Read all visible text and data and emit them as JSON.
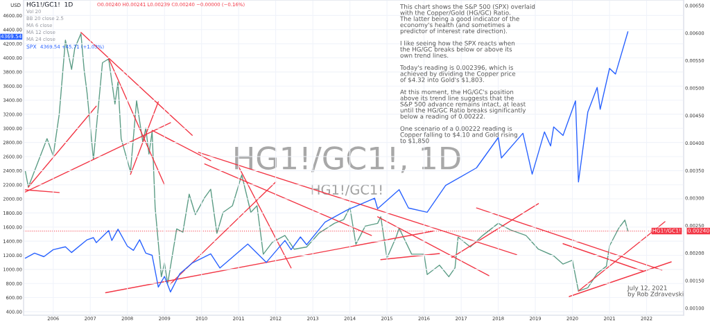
{
  "chart_data": {
    "type": "line",
    "title": "HG1!/GC1!  1D",
    "ylabel": "USD",
    "annotations": [
      "O0.00240 H0.00241 L0.00239 C0.00240 −0.00000 (−0.16%)",
      "Vol 20",
      "BB 20 close 2.5",
      "MA 6 close",
      "MA 12 close",
      "MA 24 close",
      "4369.54 +45.71 (+1.03%)",
      "This chart shows the S&P 500 (SPX) overlaid\nwith the Copper/Gold (HG/GC) Ratio.\nThe latter being a good indicator of the\neconomy's health (and sometimes a\npredictor of interest rate direction).\n\nI like seeing how the SPX reacts when\nthe HG/GC breaks below or above its\nown trend lines.\n\nToday's reading is 0.002396, which is\nachieved by dividing the Copper price\nof $4.32 into Gold's $1,803.\n\nAt this moment, the HG/GC's position\nabove its trend line suggests that the\nS&P 500 advance remains intact, at least\nuntil the HG/GC Ratio breaks significantly\nbelow a reading of 0.00222.\n\nOne scenario of a 0.00222 reading is\nCopper falling to $4.10 and Gold rising\nto $1,850",
      "July 12, 2021\nby Rob Zdravevski",
      "HG1!/GC1!, 1D",
      "HG1!/GC1!",
      "4369.54",
      "0.00240"
    ],
    "xlim": [
      "2005-03-15",
      "2023-01"
    ],
    "xticks": [
      "2006",
      "2007",
      "2008",
      "2009",
      "2010",
      "2011",
      "2012",
      "2013",
      "2014",
      "2015",
      "2016",
      "2017",
      "2018",
      "2019",
      "2020",
      "2021",
      "2022"
    ],
    "ylim": [
      350,
      4820
    ],
    "yticks": [
      {
        "value": 400,
        "label": "400.00"
      },
      {
        "value": 600,
        "label": "600.00"
      },
      {
        "value": 800,
        "label": "800.00"
      },
      {
        "value": 1000,
        "label": "1000.00"
      },
      {
        "value": 1200,
        "label": "1200.00"
      },
      {
        "value": 1400,
        "label": "1400.00"
      },
      {
        "value": 1600,
        "label": "1600.00"
      },
      {
        "value": 1800,
        "label": "1800.00"
      },
      {
        "value": 2000,
        "label": "2000.00"
      },
      {
        "value": 2200,
        "label": "2200.00"
      },
      {
        "value": 2400,
        "label": "2400.00"
      },
      {
        "value": 2600,
        "label": "2600.00"
      },
      {
        "value": 2800,
        "label": "2800.00"
      },
      {
        "value": 3000,
        "label": "3000.00"
      },
      {
        "value": 3200,
        "label": "3200.00"
      },
      {
        "value": 3400,
        "label": "3400.00"
      },
      {
        "value": 3600,
        "label": "3600.00"
      },
      {
        "value": 3800,
        "label": "3800.00"
      },
      {
        "value": 4000,
        "label": "4000.00"
      },
      {
        "value": 4200,
        "label": "4200.00"
      },
      {
        "value": 4400,
        "label": "4400.00"
      },
      {
        "value": 4600,
        "label": "4600.00"
      }
    ],
    "y2lim": [
      0.00087,
      0.0066
    ],
    "y2ticks": [
      {
        "value": 0.001,
        "label": "0.00100"
      },
      {
        "value": 0.0015,
        "label": "0.00150"
      },
      {
        "value": 0.002,
        "label": "0.00200"
      },
      {
        "value": 0.0025,
        "label": "0.00250"
      },
      {
        "value": 0.003,
        "label": "0.00300"
      },
      {
        "value": 0.0035,
        "label": "0.00350"
      },
      {
        "value": 0.004,
        "label": "0.00400"
      },
      {
        "value": 0.0045,
        "label": "0.00450"
      },
      {
        "value": 0.005,
        "label": "0.00500"
      },
      {
        "value": 0.0055,
        "label": "0.00550"
      },
      {
        "value": 0.006,
        "label": "0.00600"
      },
      {
        "value": 0.0065,
        "label": "0.00650"
      }
    ],
    "grid": true,
    "ref_lines": [
      {
        "axis": "y2",
        "value": 0.0024,
        "label": "HG1!/GC1!",
        "color": "#f23645",
        "line_style": "dotted"
      }
    ],
    "series": [
      {
        "name": "SPX",
        "axis": "y",
        "color": "#2962ff",
        "x": [
          "2005-04",
          "2005-07",
          "2005-10",
          "2006-01",
          "2006-05",
          "2006-07",
          "2006-12",
          "2007-02",
          "2007-03",
          "2007-07",
          "2007-08",
          "2007-10",
          "2008-01",
          "2008-03",
          "2008-05",
          "2008-07",
          "2008-09",
          "2008-11",
          "2009-01",
          "2009-03",
          "2009-06",
          "2009-10",
          "2010-04",
          "2010-07",
          "2011-04",
          "2011-10",
          "2012-04",
          "2012-06",
          "2012-09",
          "2012-11",
          "2013-05",
          "2013-12",
          "2014-09",
          "2014-10",
          "2015-05",
          "2015-08",
          "2016-02",
          "2016-08",
          "2017-06",
          "2018-01",
          "2018-02",
          "2018-09",
          "2018-12",
          "2019-04",
          "2019-06",
          "2019-07",
          "2019-10",
          "2020-02",
          "2020-03",
          "2020-06",
          "2020-09",
          "2020-10",
          "2021-01",
          "2021-03",
          "2021-07"
        ],
        "values": [
          1160,
          1230,
          1180,
          1280,
          1320,
          1240,
          1420,
          1450,
          1380,
          1550,
          1410,
          1570,
          1330,
          1270,
          1420,
          1230,
          1200,
          750,
          900,
          680,
          940,
          1090,
          1220,
          1020,
          1360,
          1100,
          1410,
          1280,
          1460,
          1350,
          1670,
          1840,
          2010,
          1860,
          2130,
          1870,
          1810,
          2190,
          2440,
          2870,
          2580,
          2930,
          2350,
          2950,
          2750,
          3020,
          2900,
          3390,
          2240,
          3230,
          3580,
          3270,
          3850,
          3770,
          4370
        ]
      },
      {
        "axis": "y2",
        "color": "#5b9c85",
        "x": [
          "2005-04",
          "2005-05",
          "2005-11",
          "2006-01",
          "2006-03",
          "2006-05",
          "2006-07",
          "2006-08",
          "2006-10",
          "2006-11",
          "2006-12",
          "2007-02",
          "2007-05",
          "2007-07",
          "2007-09",
          "2007-10",
          "2007-11",
          "2008-02",
          "2008-04",
          "2008-06",
          "2008-07",
          "2008-08",
          "2008-09",
          "2008-10",
          "2008-12",
          "2009-01",
          "2009-02",
          "2009-05",
          "2009-07",
          "2009-09",
          "2009-11",
          "2010-02",
          "2010-04",
          "2010-06",
          "2010-08",
          "2010-11",
          "2011-02",
          "2011-05",
          "2011-07",
          "2011-09",
          "2011-12",
          "2012-04",
          "2012-07",
          "2012-11",
          "2013-03",
          "2013-08",
          "2013-11",
          "2014-01",
          "2014-03",
          "2014-06",
          "2014-10",
          "2014-11",
          "2015-01",
          "2015-04",
          "2015-05",
          "2015-09",
          "2016-01",
          "2016-02",
          "2016-06",
          "2016-09",
          "2016-11",
          "2016-12",
          "2017-04",
          "2017-08",
          "2018-01",
          "2018-05",
          "2018-10",
          "2019-02",
          "2019-07",
          "2019-10",
          "2020-01",
          "2020-03",
          "2020-06",
          "2020-09",
          "2020-12",
          "2021-01",
          "2021-04",
          "2021-06",
          "2021-07"
        ],
        "values": [
          0.00349,
          0.0032,
          0.00408,
          0.00377,
          0.00452,
          0.00587,
          0.00534,
          0.00572,
          0.00599,
          0.00534,
          0.0049,
          0.0037,
          0.00546,
          0.00553,
          0.00471,
          0.00511,
          0.00408,
          0.00348,
          0.00477,
          0.00402,
          0.00427,
          0.0038,
          0.00421,
          0.00282,
          0.00157,
          0.00182,
          0.00144,
          0.00244,
          0.00238,
          0.00307,
          0.0027,
          0.00301,
          0.00316,
          0.00236,
          0.00274,
          0.00286,
          0.00342,
          0.00274,
          0.00286,
          0.00198,
          0.0022,
          0.00232,
          0.00207,
          0.00211,
          0.00236,
          0.00254,
          0.00261,
          0.00283,
          0.00216,
          0.00249,
          0.00254,
          0.00266,
          0.00191,
          0.00229,
          0.00245,
          0.00198,
          0.00198,
          0.00161,
          0.00178,
          0.00157,
          0.00173,
          0.00229,
          0.00211,
          0.00232,
          0.00254,
          0.00242,
          0.00232,
          0.00207,
          0.00195,
          0.0018,
          0.00187,
          0.00131,
          0.00137,
          0.00163,
          0.00176,
          0.00213,
          0.00245,
          0.0026,
          0.0024
        ]
      },
      {
        "type": "line",
        "axis": "y2",
        "color": "#f23645",
        "x": [
          "2005-04",
          "2006-03"
        ],
        "values": [
          0.00315,
          0.0031
        ]
      },
      {
        "type": "line",
        "axis": "y2",
        "color": "#f23645",
        "x": [
          "2005-05",
          "2007-03"
        ],
        "values": [
          0.0032,
          0.00467
        ]
      },
      {
        "type": "line",
        "axis": "y2",
        "color": "#f23645",
        "x": [
          "2005-04",
          "2009-03"
        ],
        "values": [
          0.00311,
          0.00437
        ]
      },
      {
        "type": "line",
        "axis": "y2",
        "color": "#f23645",
        "x": [
          "2006-10",
          "2009-10"
        ],
        "values": [
          0.00601,
          0.00414
        ]
      },
      {
        "type": "line",
        "axis": "y2",
        "color": "#f23645",
        "x": [
          "2007-07",
          "2009-01"
        ],
        "values": [
          0.00554,
          0.00324
        ]
      },
      {
        "type": "line",
        "axis": "y2",
        "color": "#f23645",
        "x": [
          "2008-02",
          "2008-11"
        ],
        "values": [
          0.00343,
          0.00475
        ]
      },
      {
        "type": "line",
        "axis": "y2",
        "color": "#f23645",
        "x": [
          "2008-09",
          "2010-04"
        ],
        "values": [
          0.00423,
          0.00368
        ]
      },
      {
        "type": "line",
        "axis": "y2",
        "color": "#f23645",
        "x": [
          "2009-12",
          "2018-07"
        ],
        "values": [
          0.00383,
          0.00197
        ]
      },
      {
        "type": "line",
        "axis": "y2",
        "color": "#f23645",
        "x": [
          "2010-02",
          "2014-08"
        ],
        "values": [
          0.00362,
          0.00232
        ]
      },
      {
        "type": "line",
        "axis": "y2",
        "color": "#f23645",
        "x": [
          "2011-01",
          "2012-06"
        ],
        "values": [
          0.00357,
          0.00173
        ]
      },
      {
        "type": "line",
        "axis": "y2",
        "color": "#f23645",
        "x": [
          "2009-03",
          "2012-01"
        ],
        "values": [
          0.00144,
          0.00329
        ]
      },
      {
        "type": "line",
        "axis": "y2",
        "color": "#f23645",
        "x": [
          "2007-06",
          "2016-04"
        ],
        "values": [
          0.00128,
          0.0024
        ]
      },
      {
        "type": "line",
        "axis": "y2",
        "color": "#f23645",
        "x": [
          "2014-11",
          "2016-06"
        ],
        "values": [
          0.00188,
          0.00199
        ]
      },
      {
        "type": "line",
        "axis": "y2",
        "color": "#f23645",
        "x": [
          "2014-10",
          "2017-10"
        ],
        "values": [
          0.00266,
          0.00159
        ]
      },
      {
        "type": "line",
        "axis": "y2",
        "color": "#f23645",
        "x": [
          "2016-10",
          "2019-02"
        ],
        "values": [
          0.00192,
          0.0029
        ]
      },
      {
        "type": "line",
        "axis": "y2",
        "color": "#f23645",
        "x": [
          "2017-06",
          "2022-06"
        ],
        "values": [
          0.00282,
          0.00169
        ]
      },
      {
        "type": "line",
        "axis": "y2",
        "color": "#f23645",
        "x": [
          "2020-03",
          "2022-07"
        ],
        "values": [
          0.00131,
          0.00257
        ]
      },
      {
        "type": "line",
        "axis": "y2",
        "color": "#f23645",
        "x": [
          "2019-12",
          "2022-09"
        ],
        "values": [
          0.00121,
          0.00184
        ]
      },
      {
        "type": "line",
        "axis": "y2",
        "color": "#f23645",
        "x": [
          "2019-10",
          "2021-12"
        ],
        "values": [
          0.00217,
          0.00167
        ]
      }
    ]
  }
}
